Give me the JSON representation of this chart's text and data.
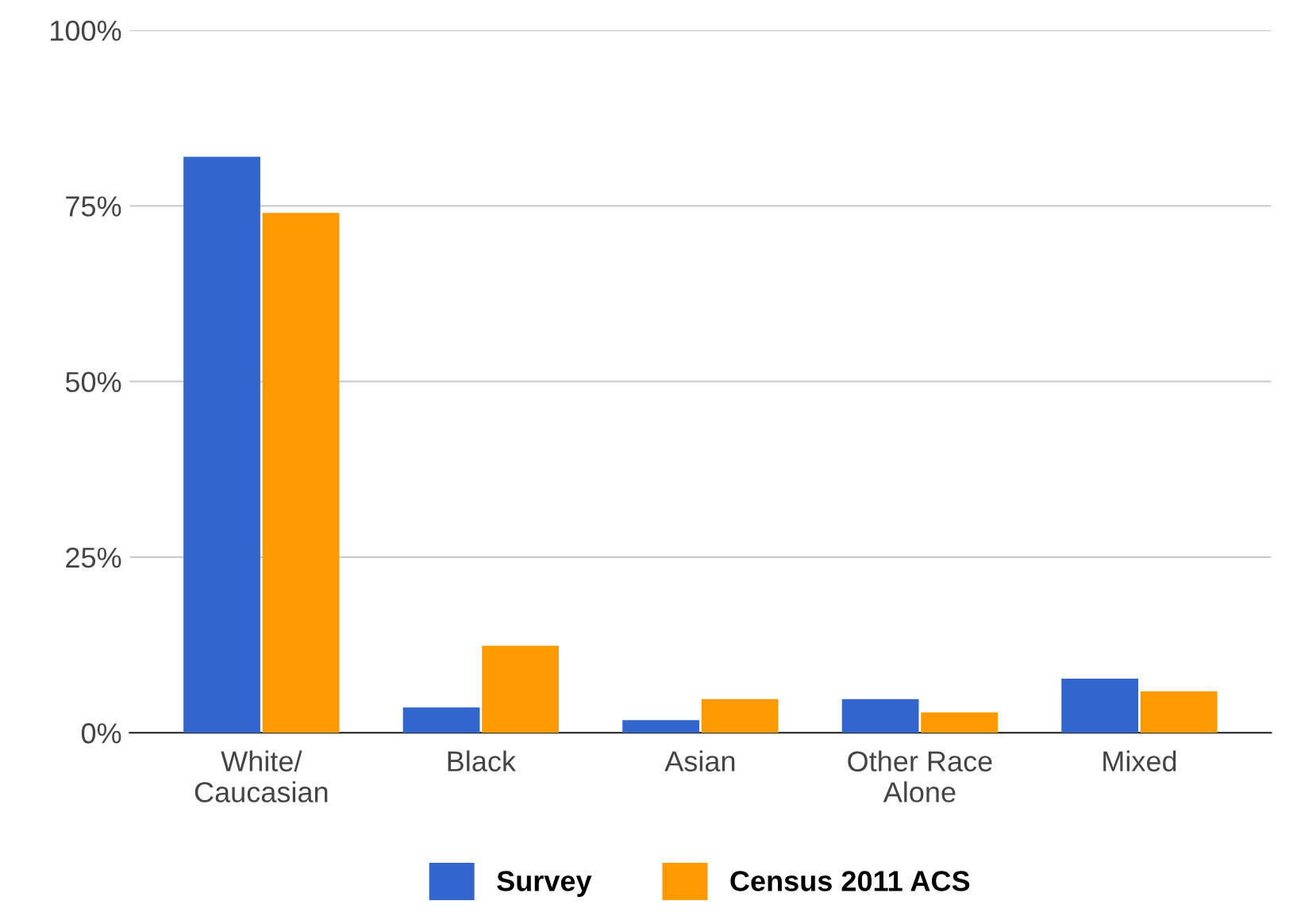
{
  "chart_data": {
    "type": "bar",
    "categories": [
      "White/\nCaucasian",
      "Black",
      "Asian",
      "Other Race\nAlone",
      "Mixed"
    ],
    "series": [
      {
        "name": "Survey",
        "color": "#3366cc",
        "values": [
          82,
          3.6,
          1.8,
          4.8,
          7.7
        ]
      },
      {
        "name": "Census 2011 ACS",
        "color": "#ff9900",
        "values": [
          74,
          12.4,
          4.8,
          2.9,
          5.9
        ]
      }
    ],
    "ylim": [
      0,
      100
    ],
    "yticks": [
      {
        "value": 0,
        "label": "0%"
      },
      {
        "value": 25,
        "label": "25%"
      },
      {
        "value": 50,
        "label": "50%"
      },
      {
        "value": 75,
        "label": "75%"
      },
      {
        "value": 100,
        "label": "100%"
      }
    ],
    "grid": "y",
    "legend": "bottom"
  }
}
